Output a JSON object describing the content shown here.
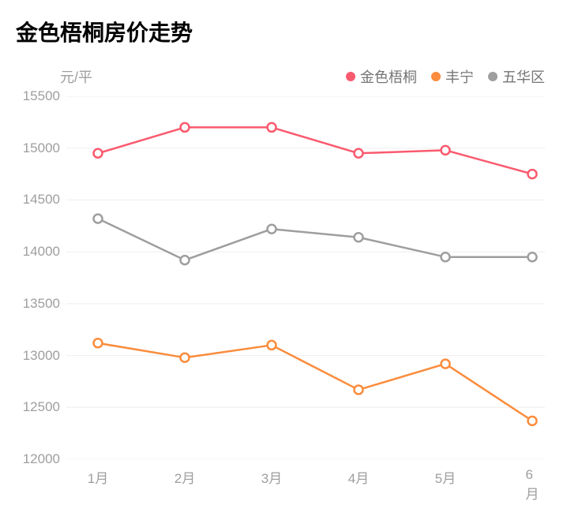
{
  "title": "金色梧桐房价走势",
  "chart": {
    "type": "line",
    "ylabel": "元/平",
    "ylim": [
      12000,
      15500
    ],
    "ytick_step": 500,
    "yticks": [
      15500,
      15000,
      14500,
      14000,
      13500,
      13000,
      12500,
      12000
    ],
    "categories": [
      "1月",
      "2月",
      "3月",
      "4月",
      "5月",
      "6月"
    ],
    "background_color": "#ffffff",
    "grid_color": "#eeeeee",
    "axis_text_color": "#9e9e9e",
    "axis_fontsize": 17,
    "title_fontsize": 28,
    "title_color": "#000000",
    "legend_fontsize": 18,
    "line_width": 2.5,
    "marker_radius": 5.5,
    "marker_fill": "#ffffff",
    "marker_stroke_width": 2.5,
    "series": [
      {
        "name": "金色梧桐",
        "color": "#fa5a6e",
        "values": [
          14950,
          15200,
          15200,
          14950,
          14980,
          14750
        ]
      },
      {
        "name": "丰宁",
        "color": "#fa8c3c",
        "values": [
          13120,
          12980,
          13100,
          12670,
          12920,
          12370
        ]
      },
      {
        "name": "五华区",
        "color": "#9e9e9e",
        "values": [
          14320,
          13920,
          14220,
          14140,
          13950,
          13950
        ]
      }
    ]
  }
}
